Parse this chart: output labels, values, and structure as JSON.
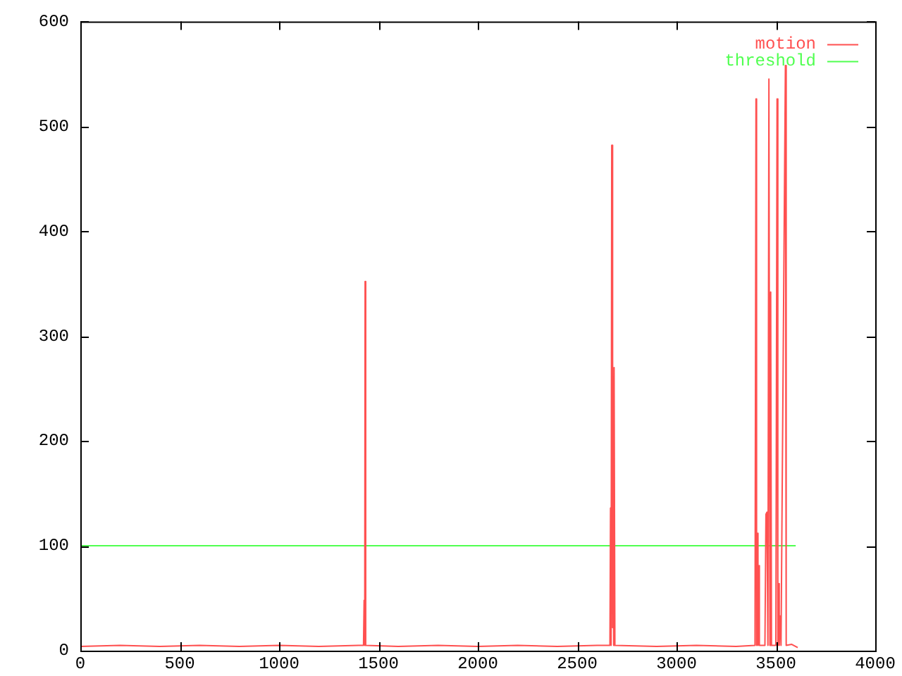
{
  "chart_data": {
    "type": "line",
    "xlim": [
      0,
      4000
    ],
    "xticks": [
      0,
      500,
      1000,
      1500,
      2000,
      2500,
      3000,
      3500,
      4000
    ],
    "ylim": [
      0,
      600
    ],
    "yticks": [
      0,
      100,
      200,
      300,
      400,
      500,
      600
    ],
    "grid": false,
    "legend": "top right",
    "marker": "none",
    "line_style": "solid",
    "series": [
      {
        "name": "motion",
        "color": "#ff5050",
        "x": [
          0,
          200,
          400,
          600,
          800,
          1000,
          1200,
          1400,
          1425,
          1428,
          1431,
          1433,
          1436,
          1600,
          1800,
          2000,
          2200,
          2400,
          2600,
          2665,
          2668,
          2671,
          2674,
          2677,
          2680,
          2684,
          2686,
          2690,
          2900,
          3100,
          3300,
          3395,
          3400,
          3403,
          3406,
          3410,
          3413,
          3417,
          3445,
          3450,
          3455,
          3460,
          3465,
          3470,
          3474,
          3478,
          3500,
          3506,
          3510,
          3513,
          3517,
          3522,
          3526,
          3548,
          3552,
          3580,
          3610
        ],
        "values": [
          4,
          5,
          4,
          5,
          4,
          5,
          4,
          5,
          5,
          48,
          5,
          352,
          5,
          4,
          5,
          4,
          5,
          4,
          5,
          5,
          136,
          5,
          482,
          22,
          278,
          5,
          270,
          5,
          4,
          5,
          4,
          5,
          526,
          5,
          112,
          5,
          81,
          5,
          5,
          130,
          132,
          5,
          545,
          5,
          342,
          5,
          5,
          526,
          5,
          64,
          5,
          33,
          5,
          558,
          5,
          6,
          3
        ]
      },
      {
        "name": "threshold",
        "color": "#50ff50",
        "x": [
          0,
          3600
        ],
        "values": [
          100,
          100
        ]
      }
    ]
  }
}
